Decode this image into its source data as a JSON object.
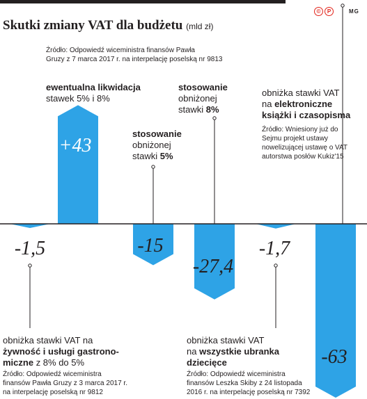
{
  "header": {
    "title": "Skutki zmiany VAT dla budżetu",
    "unit": "(mld zł)",
    "logo_c": "©",
    "logo_p": "P",
    "brand": "MG"
  },
  "chart_data": {
    "type": "bar",
    "categories": [
      "obniżka stawki VAT na żywność i usługi gastronomiczne z 8% do 5%",
      "ewentualna likwidacja stawek 5% i 8%",
      "stosowanie obniżonej stawki 5%",
      "stosowanie obniżonej stawki 8%",
      "obniżka stawki VAT na wszystkie ubranka dziecięce",
      "obniżka stawki VAT na elektroniczne książki i czasopisma"
    ],
    "values": [
      -1.5,
      43,
      -15,
      -27.4,
      -1.7,
      -63
    ],
    "value_labels": [
      "-1,5",
      "+43",
      "-15",
      "-27,4",
      "-1,7",
      "-63"
    ],
    "bar_color": "#2ea3e6",
    "grid": false
  },
  "annotations": {
    "gruza_7": {
      "line1": "Źródło: Odpowiedź wiceministra finansów Pawła",
      "line2": "Gruzy z 7 marca 2017 r. na interpelację poselską nr 9813"
    },
    "likwidacja": {
      "bold": "ewentualna likwidacja",
      "rest": "stawek 5% i 8%"
    },
    "stawka5": {
      "line1": "stosowanie",
      "line2": "obniżonej",
      "line3a": "stawki ",
      "line3b": "5%"
    },
    "stawka8": {
      "line1": "stosowanie",
      "line2": "obniżonej",
      "line3a": "stawki ",
      "line3b": "8%"
    },
    "ksiazki": {
      "line1": "obniżka stawki VAT",
      "line2a": "na ",
      "line2b": "elektroniczne",
      "line3": "książki i czasopisma",
      "src1": "Źródło: Wniesiony już do",
      "src2": "Sejmu projekt ustawy",
      "src3": "nowelizującej ustawę o VAT",
      "src4": "autorstwa posłów Kukiz'15"
    },
    "zywnosc": {
      "line1": "obniżka stawki VAT na",
      "line2": "żywność i usługi gastrono-",
      "line3a": "miczne",
      "line3b": " z 8% do 5%",
      "src1": "Źródło: Odpowiedź wiceministra",
      "src2": "finansów Pawła Gruzy z 3 marca 2017 r.",
      "src3": "na interpelację poselską nr 9812"
    },
    "ubranka": {
      "line1": "obniżka stawki VAT",
      "line2a": "na ",
      "line2b": "wszystkie ubranka",
      "line3": "dziecięce",
      "src1": "Źródło: Odpowiedź wiceministra",
      "src2": "finansów Leszka Skiby z 24 listopada",
      "src3": "2016 r. na interpelację poselską nr 7392"
    }
  }
}
